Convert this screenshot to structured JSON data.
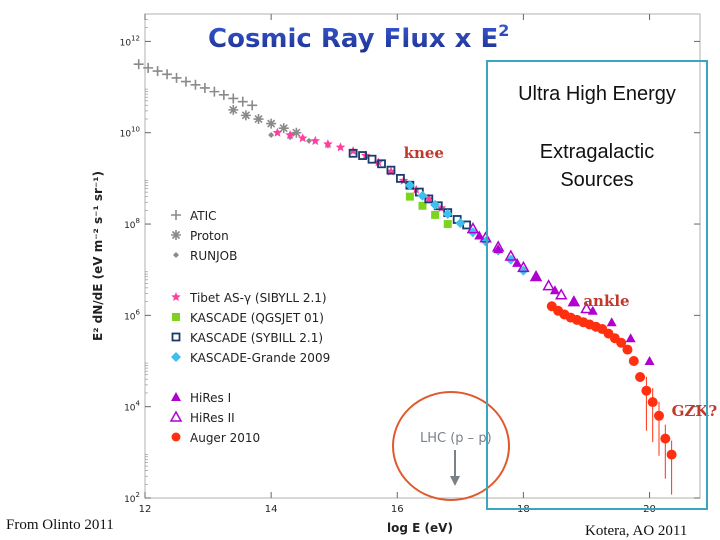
{
  "chart_data": {
    "type": "scatter",
    "title": "Cosmic Ray Flux x E",
    "title_sup": "2",
    "xlabel": "log E (eV)",
    "ylabel": "E² dN/dE (eV m⁻² s⁻¹ sr⁻¹)",
    "xlim": [
      12,
      20.8
    ],
    "ylim_log10": [
      2,
      12.6
    ],
    "x_ticks": [
      {
        "value": 12,
        "label": "12"
      },
      {
        "value": 14,
        "label": "14"
      },
      {
        "value": 16,
        "label": "16"
      },
      {
        "value": 18,
        "label": "18"
      },
      {
        "value": 20,
        "label": "20"
      }
    ],
    "y_ticks": [
      {
        "value": 2,
        "base": "10",
        "exp": "2"
      },
      {
        "value": 4,
        "base": "10",
        "exp": "4"
      },
      {
        "value": 6,
        "base": "10",
        "exp": "6"
      },
      {
        "value": 8,
        "base": "10",
        "exp": "8"
      },
      {
        "value": 10,
        "base": "10",
        "exp": "10"
      },
      {
        "value": 12,
        "base": "10",
        "exp": "12"
      }
    ],
    "legend_groups": [
      [
        {
          "name": "ATIC",
          "marker": "plus",
          "color": "#8a8a8a"
        },
        {
          "name": "Proton",
          "marker": "asterisk",
          "color": "#8a8a8a"
        },
        {
          "name": "RUNJOB",
          "marker": "diamond-small",
          "color": "#8a8a8a"
        }
      ],
      [
        {
          "name": "Tibet AS-γ (SIBYLL 2.1)",
          "marker": "star",
          "color": "#ff3fa0"
        },
        {
          "name": "KASCADE (QGSJET 01)",
          "marker": "square",
          "color": "#7ed321"
        },
        {
          "name": "KASCADE (SYBILL 2.1)",
          "marker": "square-open",
          "color": "#1a3a6e"
        },
        {
          "name": "KASCADE-Grande 2009",
          "marker": "diamond",
          "color": "#3ec0ee"
        }
      ],
      [
        {
          "name": "HiRes I",
          "marker": "triangle",
          "color": "#b000d0"
        },
        {
          "name": "HiRes II",
          "marker": "triangle-open",
          "color": "#b000d0"
        },
        {
          "name": "Auger 2010",
          "marker": "circle",
          "color": "#ff3010"
        }
      ]
    ],
    "series": [
      {
        "name": "ATIC",
        "marker": "plus",
        "color": "#8a8a8a",
        "points": [
          [
            11.9,
            11.5
          ],
          [
            12.05,
            11.42
          ],
          [
            12.2,
            11.35
          ],
          [
            12.35,
            11.28
          ],
          [
            12.5,
            11.2
          ],
          [
            12.65,
            11.12
          ],
          [
            12.8,
            11.05
          ],
          [
            12.95,
            10.98
          ],
          [
            13.1,
            10.9
          ],
          [
            13.25,
            10.83
          ],
          [
            13.4,
            10.75
          ],
          [
            13.55,
            10.68
          ],
          [
            13.7,
            10.6
          ]
        ]
      },
      {
        "name": "Proton",
        "marker": "asterisk",
        "color": "#8a8a8a",
        "points": [
          [
            13.4,
            10.5
          ],
          [
            13.6,
            10.38
          ],
          [
            13.8,
            10.3
          ],
          [
            14.0,
            10.2
          ],
          [
            14.2,
            10.1
          ],
          [
            14.4,
            10.0
          ]
        ]
      },
      {
        "name": "RUNJOB",
        "marker": "diamond-small",
        "color": "#8a8a8a",
        "points": [
          [
            14.0,
            9.95
          ],
          [
            14.3,
            9.9
          ],
          [
            14.6,
            9.82
          ],
          [
            14.9,
            9.72
          ]
        ]
      },
      {
        "name": "Tibet AS-γ (SIBYLL 2.1)",
        "marker": "star",
        "color": "#ff3fa0",
        "points": [
          [
            14.1,
            10.0
          ],
          [
            14.3,
            9.95
          ],
          [
            14.5,
            9.88
          ],
          [
            14.7,
            9.82
          ],
          [
            14.9,
            9.75
          ],
          [
            15.1,
            9.68
          ],
          [
            15.3,
            9.6
          ],
          [
            15.5,
            9.5
          ],
          [
            15.7,
            9.35
          ],
          [
            15.9,
            9.15
          ],
          [
            16.1,
            8.95
          ],
          [
            16.3,
            8.75
          ],
          [
            16.5,
            8.55
          ],
          [
            16.7,
            8.35
          ]
        ]
      },
      {
        "name": "KASCADE (QGSJET 01)",
        "marker": "square",
        "color": "#7ed321",
        "points": [
          [
            16.2,
            8.6
          ],
          [
            16.4,
            8.4
          ],
          [
            16.6,
            8.2
          ],
          [
            16.8,
            8.0
          ]
        ]
      },
      {
        "name": "KASCADE (SYBILL 2.1)",
        "marker": "square-open",
        "color": "#1a3a6e",
        "points": [
          [
            15.3,
            9.55
          ],
          [
            15.45,
            9.5
          ],
          [
            15.6,
            9.42
          ],
          [
            15.75,
            9.32
          ],
          [
            15.9,
            9.18
          ],
          [
            16.05,
            9.0
          ],
          [
            16.2,
            8.85
          ],
          [
            16.35,
            8.7
          ],
          [
            16.5,
            8.55
          ],
          [
            16.65,
            8.4
          ],
          [
            16.8,
            8.25
          ],
          [
            16.95,
            8.1
          ],
          [
            17.1,
            7.98
          ]
        ]
      },
      {
        "name": "KASCADE-Grande 2009",
        "marker": "diamond",
        "color": "#3ec0ee",
        "points": [
          [
            16.2,
            8.85
          ],
          [
            16.4,
            8.62
          ],
          [
            16.6,
            8.42
          ],
          [
            16.8,
            8.22
          ],
          [
            17.0,
            8.02
          ],
          [
            17.2,
            7.82
          ],
          [
            17.4,
            7.62
          ],
          [
            17.6,
            7.42
          ],
          [
            17.8,
            7.22
          ],
          [
            18.0,
            6.98
          ]
        ]
      },
      {
        "name": "HiRes I",
        "marker": "triangle",
        "color": "#b000d0",
        "points": [
          [
            17.3,
            7.75
          ],
          [
            17.6,
            7.45
          ],
          [
            17.9,
            7.15
          ],
          [
            18.2,
            6.85
          ],
          [
            18.5,
            6.55
          ],
          [
            18.8,
            6.3
          ],
          [
            19.1,
            6.1
          ],
          [
            19.4,
            5.85
          ],
          [
            19.7,
            5.5
          ],
          [
            20.0,
            5.0
          ]
        ]
      },
      {
        "name": "HiRes II",
        "marker": "triangle-open",
        "color": "#b000d0",
        "points": [
          [
            17.2,
            7.9
          ],
          [
            17.4,
            7.7
          ],
          [
            17.6,
            7.5
          ],
          [
            17.8,
            7.3
          ],
          [
            18.0,
            7.05
          ],
          [
            18.2,
            6.85
          ],
          [
            18.4,
            6.65
          ],
          [
            18.6,
            6.45
          ],
          [
            18.8,
            6.3
          ],
          [
            19.0,
            6.15
          ]
        ]
      },
      {
        "name": "Auger 2010",
        "marker": "circle",
        "color": "#ff3010",
        "points": [
          [
            18.45,
            6.2
          ],
          [
            18.55,
            6.1
          ],
          [
            18.65,
            6.02
          ],
          [
            18.75,
            5.95
          ],
          [
            18.85,
            5.9
          ],
          [
            18.95,
            5.85
          ],
          [
            19.05,
            5.8
          ],
          [
            19.15,
            5.75
          ],
          [
            19.25,
            5.7
          ],
          [
            19.35,
            5.6
          ],
          [
            19.45,
            5.5
          ],
          [
            19.55,
            5.4
          ],
          [
            19.65,
            5.25
          ],
          [
            19.75,
            5.0
          ],
          [
            19.85,
            4.65
          ],
          [
            19.95,
            4.35
          ],
          [
            20.05,
            4.1
          ],
          [
            20.15,
            3.8
          ],
          [
            20.25,
            3.3
          ],
          [
            20.35,
            2.95
          ]
        ]
      }
    ],
    "annotations": [
      {
        "text": "knee",
        "x": 16.1,
        "y_log": 9.45,
        "color": "#c0392b"
      },
      {
        "text": "ankle",
        "x": 18.95,
        "y_log": 6.2,
        "color": "#c0392b"
      },
      {
        "text": "GZK?",
        "x": 20.35,
        "y_log": 3.8,
        "color": "#c0392b"
      }
    ],
    "lhc": {
      "label": "LHC (p – p)",
      "x": 17.0
    }
  },
  "box_texts": {
    "line1": "Ultra High Energy",
    "line2": "Extragalactic",
    "line3": "Sources"
  },
  "captions": {
    "left": "From  Olinto 2011",
    "right": "Kotera, AO 2011"
  }
}
